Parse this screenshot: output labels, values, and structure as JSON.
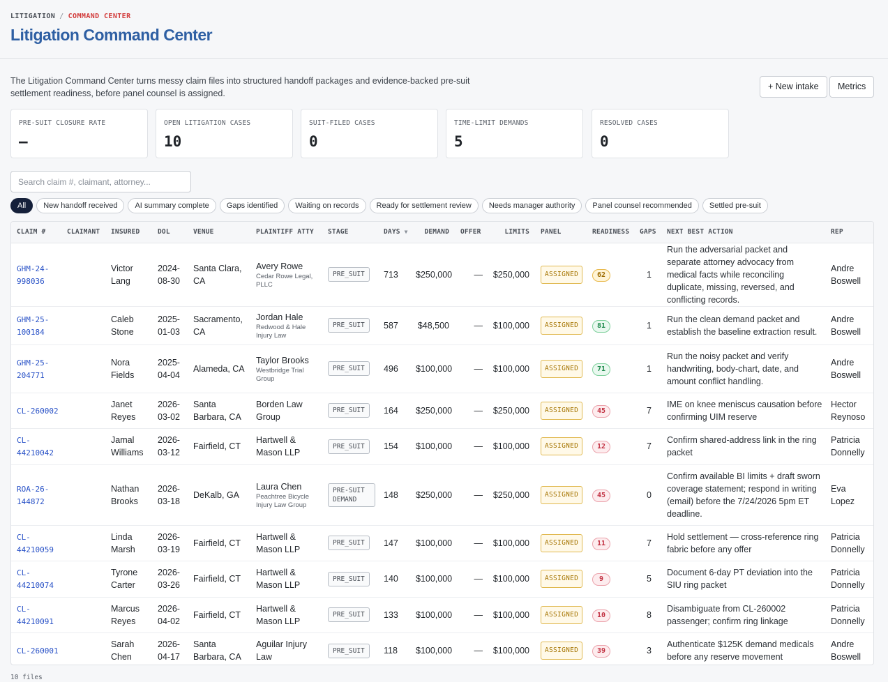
{
  "breadcrumb": {
    "parent": "LITIGATION",
    "current": "COMMAND CENTER"
  },
  "page_title": "Litigation Command Center",
  "description": "The Litigation Command Center turns messy claim files into structured handoff packages and evidence-backed pre-suit settlement readiness, before panel counsel is assigned.",
  "actions": {
    "new_intake": "+ New intake",
    "metrics": "Metrics"
  },
  "kpis": [
    {
      "label": "PRE-SUIT CLOSURE RATE",
      "value": "—"
    },
    {
      "label": "OPEN LITIGATION CASES",
      "value": "10"
    },
    {
      "label": "SUIT-FILED CASES",
      "value": "0"
    },
    {
      "label": "TIME-LIMIT DEMANDS",
      "value": "5"
    },
    {
      "label": "RESOLVED CASES",
      "value": "0"
    }
  ],
  "search": {
    "placeholder": "Search claim #, claimant, attorney..."
  },
  "filters": [
    "All",
    "New handoff received",
    "AI summary complete",
    "Gaps identified",
    "Waiting on records",
    "Ready for settlement review",
    "Needs manager authority",
    "Panel counsel recommended",
    "Settled pre-suit"
  ],
  "columns": [
    "CLAIM #",
    "CLAIMANT",
    "INSURED",
    "DOL",
    "VENUE",
    "PLAINTIFF ATTY",
    "STAGE",
    "DAYS",
    "DEMAND",
    "OFFER",
    "LIMITS",
    "PANEL",
    "READINESS",
    "GAPS",
    "NEXT BEST ACTION",
    "REP"
  ],
  "rows": [
    {
      "claim": "GHM-24-998036",
      "claimant": "",
      "insured": "Victor Lang",
      "dol": "2024-08-30",
      "venue": "Santa Clara, CA",
      "atty": "Avery Rowe",
      "firm": "Cedar Rowe Legal, PLLC",
      "stage": "PRE_SUIT",
      "days": "713",
      "demand": "$250,000",
      "offer": "—",
      "limits": "$250,000",
      "panel": "ASSIGNED",
      "readiness": "62",
      "gaps": "1",
      "action": "Run the adversarial packet and separate attorney advocacy from medical facts while reconciling duplicate, missing, reversed, and conflicting records.",
      "rep": "Andre Boswell"
    },
    {
      "claim": "GHM-25-100184",
      "claimant": "",
      "insured": "Caleb Stone",
      "dol": "2025-01-03",
      "venue": "Sacramento, CA",
      "atty": "Jordan Hale",
      "firm": "Redwood & Hale Injury Law",
      "stage": "PRE_SUIT",
      "days": "587",
      "demand": "$48,500",
      "offer": "—",
      "limits": "$100,000",
      "panel": "ASSIGNED",
      "readiness": "81",
      "gaps": "1",
      "action": "Run the clean demand packet and establish the baseline extraction result.",
      "rep": "Andre Boswell"
    },
    {
      "claim": "GHM-25-204771",
      "claimant": "",
      "insured": "Nora Fields",
      "dol": "2025-04-04",
      "venue": "Alameda, CA",
      "atty": "Taylor Brooks",
      "firm": "Westbridge Trial Group",
      "stage": "PRE_SUIT",
      "days": "496",
      "demand": "$100,000",
      "offer": "—",
      "limits": "$100,000",
      "panel": "ASSIGNED",
      "readiness": "71",
      "gaps": "1",
      "action": "Run the noisy packet and verify handwriting, body-chart, date, and amount conflict handling.",
      "rep": "Andre Boswell"
    },
    {
      "claim": "CL-260002",
      "claimant": "",
      "insured": "Janet Reyes",
      "dol": "2026-03-02",
      "venue": "Santa Barbara, CA",
      "atty": "Borden Law Group",
      "firm": "",
      "stage": "PRE_SUIT",
      "days": "164",
      "demand": "$250,000",
      "offer": "—",
      "limits": "$250,000",
      "panel": "ASSIGNED",
      "readiness": "45",
      "gaps": "7",
      "action": "IME on knee meniscus causation before confirming UIM reserve",
      "rep": "Hector Reynoso"
    },
    {
      "claim": "CL-44210042",
      "claimant": "",
      "insured": "Jamal Williams",
      "dol": "2026-03-12",
      "venue": "Fairfield, CT",
      "atty": "Hartwell & Mason LLP",
      "firm": "",
      "stage": "PRE_SUIT",
      "days": "154",
      "demand": "$100,000",
      "offer": "—",
      "limits": "$100,000",
      "panel": "ASSIGNED",
      "readiness": "12",
      "gaps": "7",
      "action": "Confirm shared-address link in the ring packet",
      "rep": "Patricia Donnelly"
    },
    {
      "claim": "ROA-26-144872",
      "claimant": "",
      "insured": "Nathan Brooks",
      "dol": "2026-03-18",
      "venue": "DeKalb, GA",
      "atty": "Laura Chen",
      "firm": "Peachtree Bicycle Injury Law Group",
      "stage": "PRE-SUIT DEMAND",
      "days": "148",
      "demand": "$250,000",
      "offer": "—",
      "limits": "$250,000",
      "panel": "ASSIGNED",
      "readiness": "45",
      "gaps": "0",
      "action": "Confirm available BI limits + draft sworn coverage statement; respond in writing (email) before the 7/24/2026 5pm ET deadline.",
      "rep": "Eva Lopez"
    },
    {
      "claim": "CL-44210059",
      "claimant": "",
      "insured": "Linda Marsh",
      "dol": "2026-03-19",
      "venue": "Fairfield, CT",
      "atty": "Hartwell & Mason LLP",
      "firm": "",
      "stage": "PRE_SUIT",
      "days": "147",
      "demand": "$100,000",
      "offer": "—",
      "limits": "$100,000",
      "panel": "ASSIGNED",
      "readiness": "11",
      "gaps": "7",
      "action": "Hold settlement — cross-reference ring fabric before any offer",
      "rep": "Patricia Donnelly"
    },
    {
      "claim": "CL-44210074",
      "claimant": "",
      "insured": "Tyrone Carter",
      "dol": "2026-03-26",
      "venue": "Fairfield, CT",
      "atty": "Hartwell & Mason LLP",
      "firm": "",
      "stage": "PRE_SUIT",
      "days": "140",
      "demand": "$100,000",
      "offer": "—",
      "limits": "$100,000",
      "panel": "ASSIGNED",
      "readiness": "9",
      "gaps": "5",
      "action": "Document 6-day PT deviation into the SIU ring packet",
      "rep": "Patricia Donnelly"
    },
    {
      "claim": "CL-44210091",
      "claimant": "",
      "insured": "Marcus Reyes",
      "dol": "2026-04-02",
      "venue": "Fairfield, CT",
      "atty": "Hartwell & Mason LLP",
      "firm": "",
      "stage": "PRE_SUIT",
      "days": "133",
      "demand": "$100,000",
      "offer": "—",
      "limits": "$100,000",
      "panel": "ASSIGNED",
      "readiness": "10",
      "gaps": "8",
      "action": "Disambiguate from CL-260002 passenger; confirm ring linkage",
      "rep": "Patricia Donnelly"
    },
    {
      "claim": "CL-260001",
      "claimant": "",
      "insured": "Sarah Chen",
      "dol": "2026-04-17",
      "venue": "Santa Barbara, CA",
      "atty": "Aguilar Injury Law",
      "firm": "",
      "stage": "PRE_SUIT",
      "days": "118",
      "demand": "$100,000",
      "offer": "—",
      "limits": "$100,000",
      "panel": "ASSIGNED",
      "readiness": "39",
      "gaps": "3",
      "action": "Authenticate $125K demand medicals before any reserve movement",
      "rep": "Andre Boswell"
    }
  ],
  "footer": "10 files",
  "colors": {
    "title": "#2e5fa3",
    "breadcrumb_current": "#d23c3c",
    "link": "#2952c7",
    "panel": "#a57400"
  }
}
